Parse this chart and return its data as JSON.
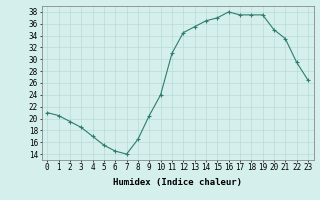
{
  "xlabel": "Humidex (Indice chaleur)",
  "x_values": [
    0,
    1,
    2,
    3,
    4,
    5,
    6,
    7,
    8,
    9,
    10,
    11,
    12,
    13,
    14,
    15,
    16,
    17,
    18,
    19,
    20,
    21,
    22,
    23
  ],
  "y_values": [
    21,
    20.5,
    19.5,
    18.5,
    17,
    15.5,
    14.5,
    14,
    16.5,
    20.5,
    24,
    31,
    34.5,
    35.5,
    36.5,
    37,
    38,
    37.5,
    37.5,
    37.5,
    35,
    33.5,
    29.5,
    26.5
  ],
  "ylim": [
    13,
    39
  ],
  "xlim": [
    -0.5,
    23.5
  ],
  "yticks": [
    14,
    16,
    18,
    20,
    22,
    24,
    26,
    28,
    30,
    32,
    34,
    36,
    38
  ],
  "xticks": [
    0,
    1,
    2,
    3,
    4,
    5,
    6,
    7,
    8,
    9,
    10,
    11,
    12,
    13,
    14,
    15,
    16,
    17,
    18,
    19,
    20,
    21,
    22,
    23
  ],
  "xtick_labels": [
    "0",
    "1",
    "2",
    "3",
    "4",
    "5",
    "6",
    "7",
    "8",
    "9",
    "10",
    "11",
    "12",
    "13",
    "14",
    "15",
    "16",
    "17",
    "18",
    "19",
    "20",
    "21",
    "22",
    "23"
  ],
  "line_color": "#2e7d6e",
  "marker": "+",
  "marker_size": 3,
  "marker_edge_width": 0.8,
  "line_width": 0.8,
  "bg_color": "#d5efed",
  "grid_color": "#b8dbd8",
  "label_fontsize": 6.5,
  "tick_fontsize": 5.5
}
